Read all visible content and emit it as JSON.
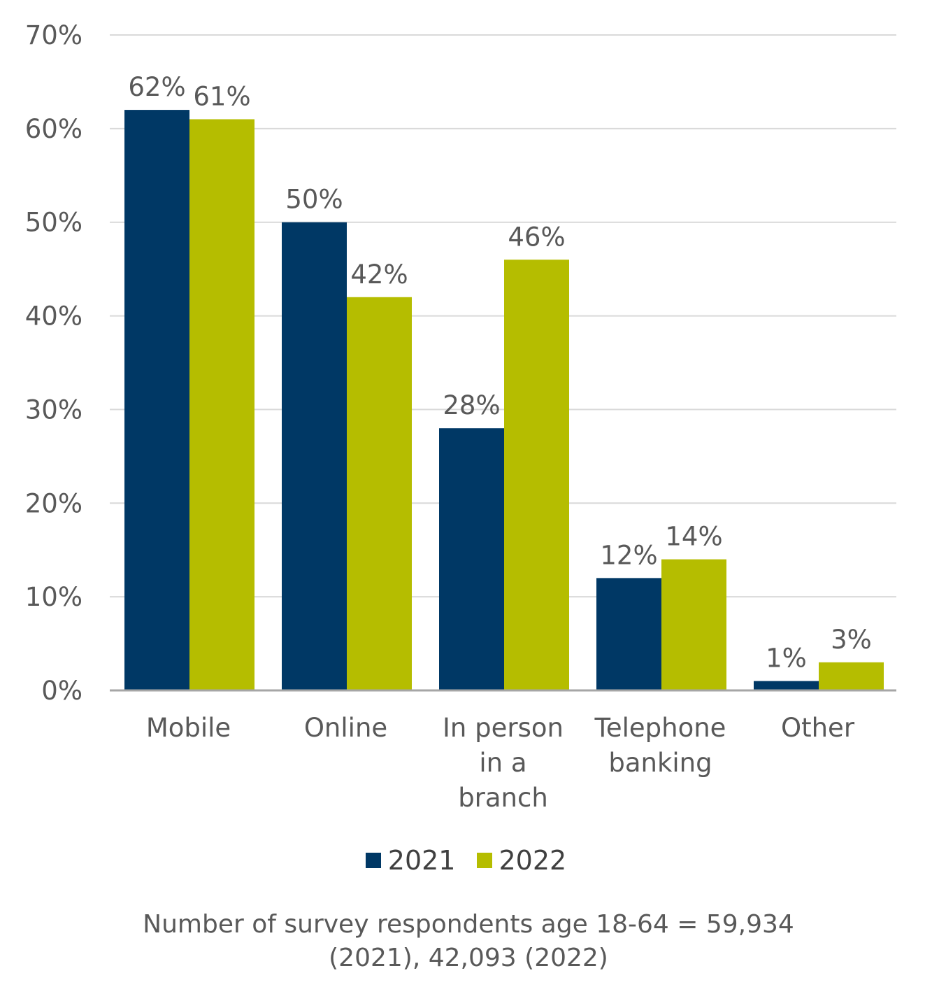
{
  "chart_data": {
    "type": "bar",
    "categories": [
      [
        "Mobile"
      ],
      [
        "Online"
      ],
      [
        "In person",
        "in a",
        "branch"
      ],
      [
        "Telephone",
        "banking"
      ],
      [
        "Other"
      ]
    ],
    "series": [
      {
        "name": "2021",
        "color": "#003865",
        "values": [
          62,
          50,
          28,
          12,
          1
        ],
        "labels": [
          "62%",
          "50%",
          "28%",
          "12%",
          "1%"
        ]
      },
      {
        "name": "2022",
        "color": "#B5BD00",
        "values": [
          61,
          42,
          46,
          14,
          3
        ],
        "labels": [
          "61%",
          "42%",
          "46%",
          "14%",
          "3%"
        ]
      }
    ],
    "ylim": [
      0,
      70
    ],
    "yticks": [
      "0%",
      "10%",
      "20%",
      "30%",
      "40%",
      "50%",
      "60%",
      "70%"
    ],
    "ytick_values": [
      0,
      10,
      20,
      30,
      40,
      50,
      60,
      70
    ],
    "grid": true,
    "legend_position": "bottom",
    "note": "Number of  survey respondents age 18-64 = 59,934\n(2021), 42,093 (2022)"
  }
}
